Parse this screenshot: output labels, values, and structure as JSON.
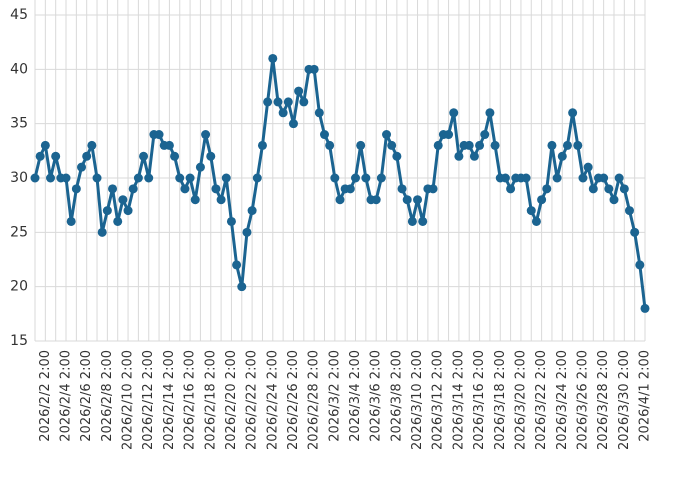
{
  "chart_data": {
    "type": "line",
    "categories": [
      null,
      null,
      "2026/2/2 2:00",
      null,
      null,
      null,
      "2026/2/4 2:00",
      null,
      null,
      null,
      "2026/2/6 2:00",
      null,
      null,
      null,
      "2026/2/8 2:00",
      null,
      null,
      null,
      "2026/2/10 2:00",
      null,
      null,
      null,
      "2026/2/12 2:00",
      null,
      null,
      null,
      "2026/2/14 2:00",
      null,
      null,
      null,
      "2026/2/16 2:00",
      null,
      null,
      null,
      "2026/2/18 2:00",
      null,
      null,
      null,
      "2026/2/20 2:00",
      null,
      null,
      null,
      "2026/2/22 2:00",
      null,
      null,
      null,
      "2026/2/24 2:00",
      null,
      null,
      null,
      "2026/2/26 2:00",
      null,
      null,
      null,
      "2026/2/28 2:00",
      null,
      null,
      null,
      "2026/3/2 2:00",
      null,
      null,
      null,
      "2026/3/4 2:00",
      null,
      null,
      null,
      "2026/3/6 2:00",
      null,
      null,
      null,
      "2026/3/8 2:00",
      null,
      null,
      null,
      "2026/3/10 2:00",
      null,
      null,
      null,
      "2026/3/12 2:00",
      null,
      null,
      null,
      "2026/3/14 2:00",
      null,
      null,
      null,
      "2026/3/16 2:00",
      null,
      null,
      null,
      "2026/3/18 2:00",
      null,
      null,
      null,
      "2026/3/20 2:00",
      null,
      null,
      null,
      "2026/3/22 2:00",
      null,
      null,
      null,
      "2026/3/24 2:00",
      null,
      null,
      null,
      "2026/3/26 2:00",
      null,
      null,
      null,
      "2026/3/28 2:00",
      null,
      null,
      null,
      "2026/3/30 2:00",
      null,
      null,
      null,
      "2026/4/1 2:00"
    ],
    "values": [
      30,
      32,
      33,
      30,
      32,
      30,
      30,
      26,
      29,
      31,
      32,
      33,
      30,
      25,
      27,
      29,
      26,
      28,
      27,
      29,
      30,
      32,
      30,
      34,
      34,
      33,
      33,
      32,
      30,
      29,
      30,
      28,
      31,
      34,
      32,
      29,
      28,
      30,
      26,
      22,
      20,
      25,
      27,
      30,
      33,
      37,
      41,
      37,
      36,
      37,
      35,
      38,
      37,
      40,
      40,
      36,
      34,
      33,
      30,
      28,
      29,
      29,
      30,
      33,
      30,
      28,
      28,
      30,
      34,
      33,
      32,
      29,
      28,
      26,
      28,
      26,
      29,
      29,
      33,
      34,
      34,
      36,
      32,
      33,
      33,
      32,
      33,
      34,
      36,
      33,
      30,
      30,
      29,
      30,
      30,
      30,
      27,
      26,
      28,
      29,
      33,
      30,
      32,
      33,
      36,
      33,
      30,
      31,
      29,
      30,
      30,
      29,
      28,
      30,
      29,
      27,
      25,
      22,
      18
    ],
    "color": "#1b6491",
    "ylim": [
      15,
      45
    ],
    "yticks": [
      15,
      20,
      25,
      30,
      35,
      40,
      45
    ],
    "grid": true
  }
}
